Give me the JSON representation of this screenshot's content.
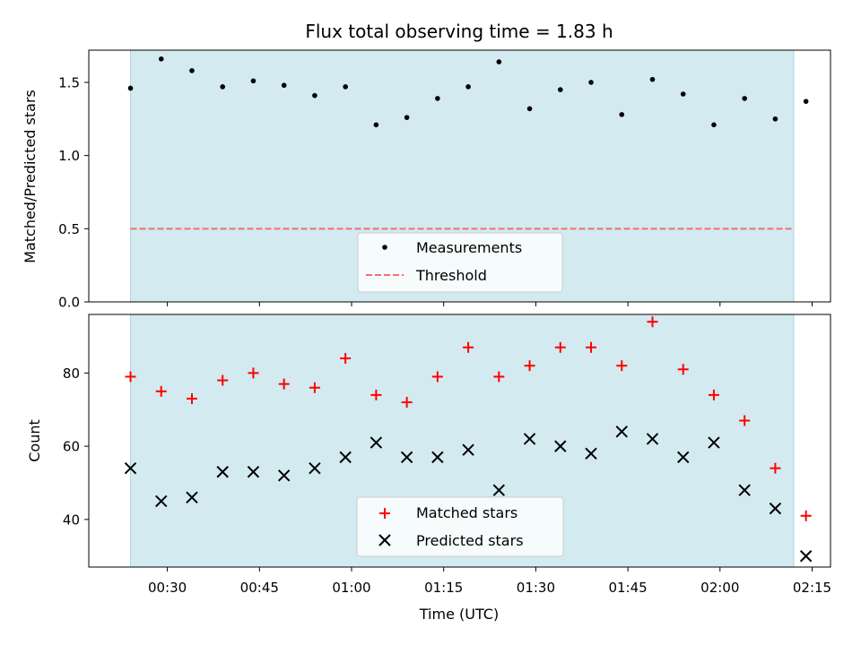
{
  "chart_data": [
    {
      "type": "scatter",
      "title": "Flux total observing time = 1.83 h",
      "xlabel": "",
      "ylabel": "Matched/Predicted stars",
      "ylim": [
        0.0,
        1.72
      ],
      "yticks": [
        "0.0",
        "0.5",
        "1.0",
        "1.5"
      ],
      "ytick_values": [
        0.0,
        0.5,
        1.0,
        1.5
      ],
      "shaded_span": [
        "00:24",
        "02:12"
      ],
      "legend_position": "lower-center",
      "threshold": {
        "name": "Threshold",
        "value": 0.5,
        "color": "#f07070"
      },
      "series": [
        {
          "name": "Measurements",
          "color": "#000000",
          "marker": "dot",
          "x": [
            "00:24",
            "00:29",
            "00:34",
            "00:39",
            "00:44",
            "00:49",
            "00:54",
            "00:59",
            "01:04",
            "01:09",
            "01:14",
            "01:19",
            "01:24",
            "01:29",
            "01:34",
            "01:39",
            "01:44",
            "01:49",
            "01:54",
            "01:59",
            "02:04",
            "02:09",
            "02:14"
          ],
          "values": [
            1.46,
            1.66,
            1.58,
            1.47,
            1.51,
            1.48,
            1.41,
            1.47,
            1.21,
            1.26,
            1.39,
            1.47,
            1.64,
            1.32,
            1.45,
            1.5,
            1.28,
            1.52,
            1.42,
            1.21,
            1.39,
            1.25,
            1.37
          ]
        }
      ]
    },
    {
      "type": "scatter",
      "xlabel": "Time (UTC)",
      "ylabel": "Count",
      "ylim": [
        27,
        96
      ],
      "yticks": [
        "40",
        "60",
        "80"
      ],
      "ytick_values": [
        40,
        60,
        80
      ],
      "xticks": [
        "00:30",
        "00:45",
        "01:00",
        "01:15",
        "01:30",
        "01:45",
        "02:00",
        "02:15"
      ],
      "shaded_span": [
        "00:24",
        "02:12"
      ],
      "legend_position": "lower-center",
      "series": [
        {
          "name": "Matched stars",
          "color": "#ff0000",
          "marker": "plus",
          "x": [
            "00:24",
            "00:29",
            "00:34",
            "00:39",
            "00:44",
            "00:49",
            "00:54",
            "00:59",
            "01:04",
            "01:09",
            "01:14",
            "01:19",
            "01:24",
            "01:29",
            "01:34",
            "01:39",
            "01:44",
            "01:49",
            "01:54",
            "01:59",
            "02:04",
            "02:09",
            "02:14"
          ],
          "values": [
            79,
            75,
            73,
            78,
            80,
            77,
            76,
            84,
            74,
            72,
            79,
            87,
            79,
            82,
            87,
            87,
            82,
            94,
            81,
            74,
            67,
            54,
            41
          ]
        },
        {
          "name": "Predicted stars",
          "color": "#000000",
          "marker": "x",
          "x": [
            "00:24",
            "00:29",
            "00:34",
            "00:39",
            "00:44",
            "00:49",
            "00:54",
            "00:59",
            "01:04",
            "01:09",
            "01:14",
            "01:19",
            "01:24",
            "01:29",
            "01:34",
            "01:39",
            "01:44",
            "01:49",
            "01:54",
            "01:59",
            "02:04",
            "02:09",
            "02:14"
          ],
          "values": [
            54,
            45,
            46,
            53,
            53,
            52,
            54,
            57,
            61,
            57,
            57,
            59,
            48,
            62,
            60,
            58,
            64,
            62,
            57,
            61,
            48,
            43,
            30
          ]
        }
      ],
      "span_color": "#add8e6"
    }
  ]
}
